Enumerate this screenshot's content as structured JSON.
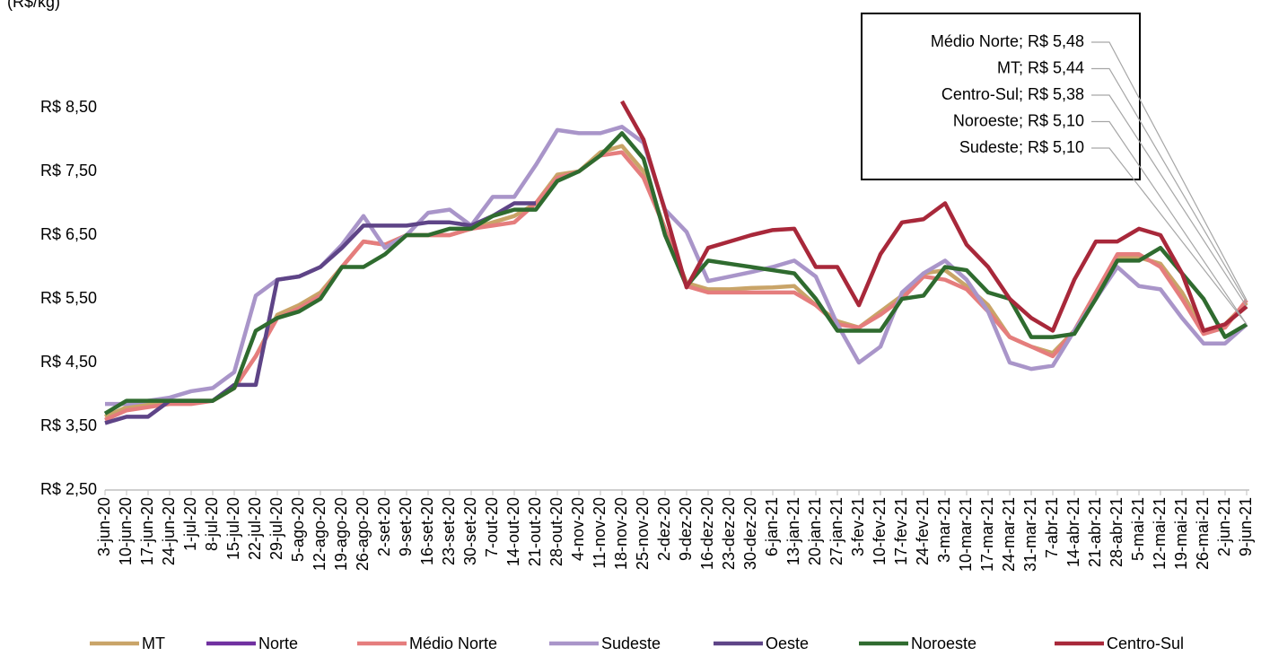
{
  "chart_data": {
    "type": "line",
    "y_label": "(R$/kg)",
    "categories": [
      "3-jun-20",
      "10-jun-20",
      "17-jun-20",
      "24-jun-20",
      "1-jul-20",
      "8-jul-20",
      "15-jul-20",
      "22-jul-20",
      "29-jul-20",
      "5-ago-20",
      "12-ago-20",
      "19-ago-20",
      "26-ago-20",
      "2-set-20",
      "9-set-20",
      "16-set-20",
      "23-set-20",
      "30-set-20",
      "7-out-20",
      "14-out-20",
      "21-out-20",
      "28-out-20",
      "4-nov-20",
      "11-nov-20",
      "18-nov-20",
      "25-nov-20",
      "2-dez-20",
      "9-dez-20",
      "16-dez-20",
      "23-dez-20",
      "30-dez-20",
      "6-jan-21",
      "13-jan-21",
      "20-jan-21",
      "27-jan-21",
      "3-fev-21",
      "10-fev-21",
      "17-fev-21",
      "24-fev-21",
      "3-mar-21",
      "10-mar-21",
      "17-mar-21",
      "24-mar-21",
      "31-mar-21",
      "7-abr-21",
      "14-abr-21",
      "21-abr-21",
      "28-abr-21",
      "5-mai-21",
      "12-mai-21",
      "19-mai-21",
      "26-mai-21",
      "2-jun-21",
      "9-jun-21"
    ],
    "series": [
      {
        "name": "MT",
        "color": "#c9a468",
        "values": [
          3.65,
          3.8,
          3.85,
          3.9,
          3.9,
          3.9,
          4.1,
          4.6,
          5.25,
          5.4,
          5.6,
          6.0,
          6.4,
          6.35,
          6.5,
          6.5,
          6.5,
          6.6,
          6.7,
          6.8,
          7.0,
          7.45,
          7.5,
          7.8,
          7.9,
          7.5,
          6.6,
          5.75,
          5.65,
          5.65,
          5.67,
          5.68,
          5.7,
          5.4,
          5.15,
          5.05,
          5.3,
          5.55,
          5.9,
          5.95,
          5.7,
          5.4,
          4.9,
          4.75,
          4.65,
          5.0,
          5.6,
          6.15,
          6.15,
          6.05,
          5.6,
          5.0,
          5.1,
          5.44
        ]
      },
      {
        "name": "Norte",
        "color": "#7030a0",
        "values": [
          null,
          null,
          null,
          null,
          null,
          null,
          null,
          null,
          null,
          null,
          null,
          null,
          null,
          null,
          null,
          null,
          null,
          null,
          null,
          null,
          null,
          null,
          null,
          null,
          null,
          null,
          null,
          null,
          null,
          null,
          null,
          null,
          null,
          null,
          null,
          null,
          null,
          null,
          null,
          null,
          null,
          null,
          null,
          null,
          null,
          null,
          null,
          null,
          null,
          null,
          null,
          null,
          null,
          null
        ]
      },
      {
        "name": "Médio Norte",
        "color": "#e57d7d",
        "values": [
          3.6,
          3.75,
          3.8,
          3.85,
          3.85,
          3.9,
          4.1,
          4.6,
          5.2,
          5.35,
          5.55,
          6.0,
          6.4,
          6.35,
          6.5,
          6.5,
          6.5,
          6.6,
          6.65,
          6.7,
          7.0,
          7.4,
          7.5,
          7.75,
          7.8,
          7.4,
          6.6,
          5.7,
          5.6,
          5.6,
          5.6,
          5.6,
          5.6,
          5.4,
          5.1,
          5.05,
          5.25,
          5.5,
          5.85,
          5.8,
          5.65,
          5.3,
          4.9,
          4.75,
          4.6,
          5.0,
          5.6,
          6.2,
          6.2,
          6.0,
          5.5,
          4.95,
          5.05,
          5.48
        ]
      },
      {
        "name": "Sudeste",
        "color": "#a995c9",
        "values": [
          3.85,
          3.85,
          3.9,
          3.95,
          4.05,
          4.1,
          4.35,
          5.55,
          5.8,
          5.85,
          6.0,
          6.35,
          6.8,
          6.3,
          6.5,
          6.85,
          6.9,
          6.65,
          7.1,
          7.1,
          7.6,
          8.15,
          8.1,
          8.1,
          8.2,
          7.95,
          6.9,
          6.55,
          5.78,
          5.85,
          5.92,
          6.0,
          6.1,
          5.85,
          5.1,
          4.5,
          4.75,
          5.6,
          5.9,
          6.1,
          5.8,
          5.3,
          4.5,
          4.4,
          4.45,
          5.0,
          5.5,
          6.0,
          5.7,
          5.65,
          5.2,
          4.8,
          4.8,
          5.1
        ]
      },
      {
        "name": "Oeste",
        "color": "#5e4487",
        "values": [
          3.55,
          3.65,
          3.65,
          3.9,
          3.9,
          3.9,
          4.15,
          4.15,
          5.8,
          5.85,
          6.0,
          6.3,
          6.65,
          6.65,
          6.65,
          6.7,
          6.7,
          6.65,
          6.8,
          7.0,
          7.0,
          null,
          null,
          null,
          null,
          null,
          null,
          null,
          null,
          null,
          null,
          null,
          null,
          null,
          null,
          null,
          null,
          null,
          null,
          null,
          null,
          null,
          null,
          null,
          null,
          null,
          null,
          null,
          null,
          null,
          null,
          null,
          null,
          null
        ]
      },
      {
        "name": "Noroeste",
        "color": "#2f6b2f",
        "values": [
          3.7,
          3.9,
          3.9,
          3.9,
          3.9,
          3.9,
          4.1,
          5.0,
          5.2,
          5.3,
          5.5,
          6.0,
          6.0,
          6.2,
          6.5,
          6.5,
          6.6,
          6.6,
          6.8,
          6.9,
          6.9,
          7.35,
          7.5,
          7.75,
          8.1,
          7.7,
          6.5,
          5.7,
          6.1,
          6.05,
          6.0,
          5.95,
          5.9,
          5.5,
          5.0,
          5.0,
          5.0,
          5.5,
          5.55,
          6.0,
          5.95,
          5.6,
          5.5,
          4.9,
          4.9,
          4.95,
          5.5,
          6.1,
          6.1,
          6.3,
          5.9,
          5.5,
          4.9,
          5.1
        ]
      },
      {
        "name": "Centro-Sul",
        "color": "#a8283a",
        "values": [
          null,
          null,
          null,
          null,
          null,
          null,
          null,
          null,
          null,
          null,
          null,
          null,
          null,
          null,
          null,
          null,
          null,
          null,
          null,
          null,
          null,
          null,
          null,
          null,
          8.6,
          8.0,
          6.88,
          5.68,
          6.3,
          6.4,
          6.5,
          6.58,
          6.6,
          6.0,
          6.0,
          5.4,
          6.2,
          6.7,
          6.75,
          7.0,
          6.35,
          6.0,
          5.5,
          5.2,
          5.0,
          5.8,
          6.4,
          6.4,
          6.6,
          6.5,
          5.9,
          5.0,
          5.1,
          5.38
        ]
      }
    ],
    "ylim": [
      2.5,
      10.1
    ],
    "yticks": [
      {
        "value": 2.5,
        "label": "R$ 2,50"
      },
      {
        "value": 3.5,
        "label": "R$ 3,50"
      },
      {
        "value": 4.5,
        "label": "R$ 4,50"
      },
      {
        "value": 5.5,
        "label": "R$ 5,50"
      },
      {
        "value": 6.5,
        "label": "R$ 6,50"
      },
      {
        "value": 7.5,
        "label": "R$ 7,50"
      },
      {
        "value": 8.5,
        "label": "R$ 8,50"
      }
    ],
    "annotations": [
      "Médio Norte; R$ 5,48",
      "MT; R$ 5,44",
      "Centro-Sul; R$ 5,38",
      "Noroeste; R$ 5,10",
      "Sudeste; R$ 5,10"
    ],
    "legend": "bottom"
  }
}
